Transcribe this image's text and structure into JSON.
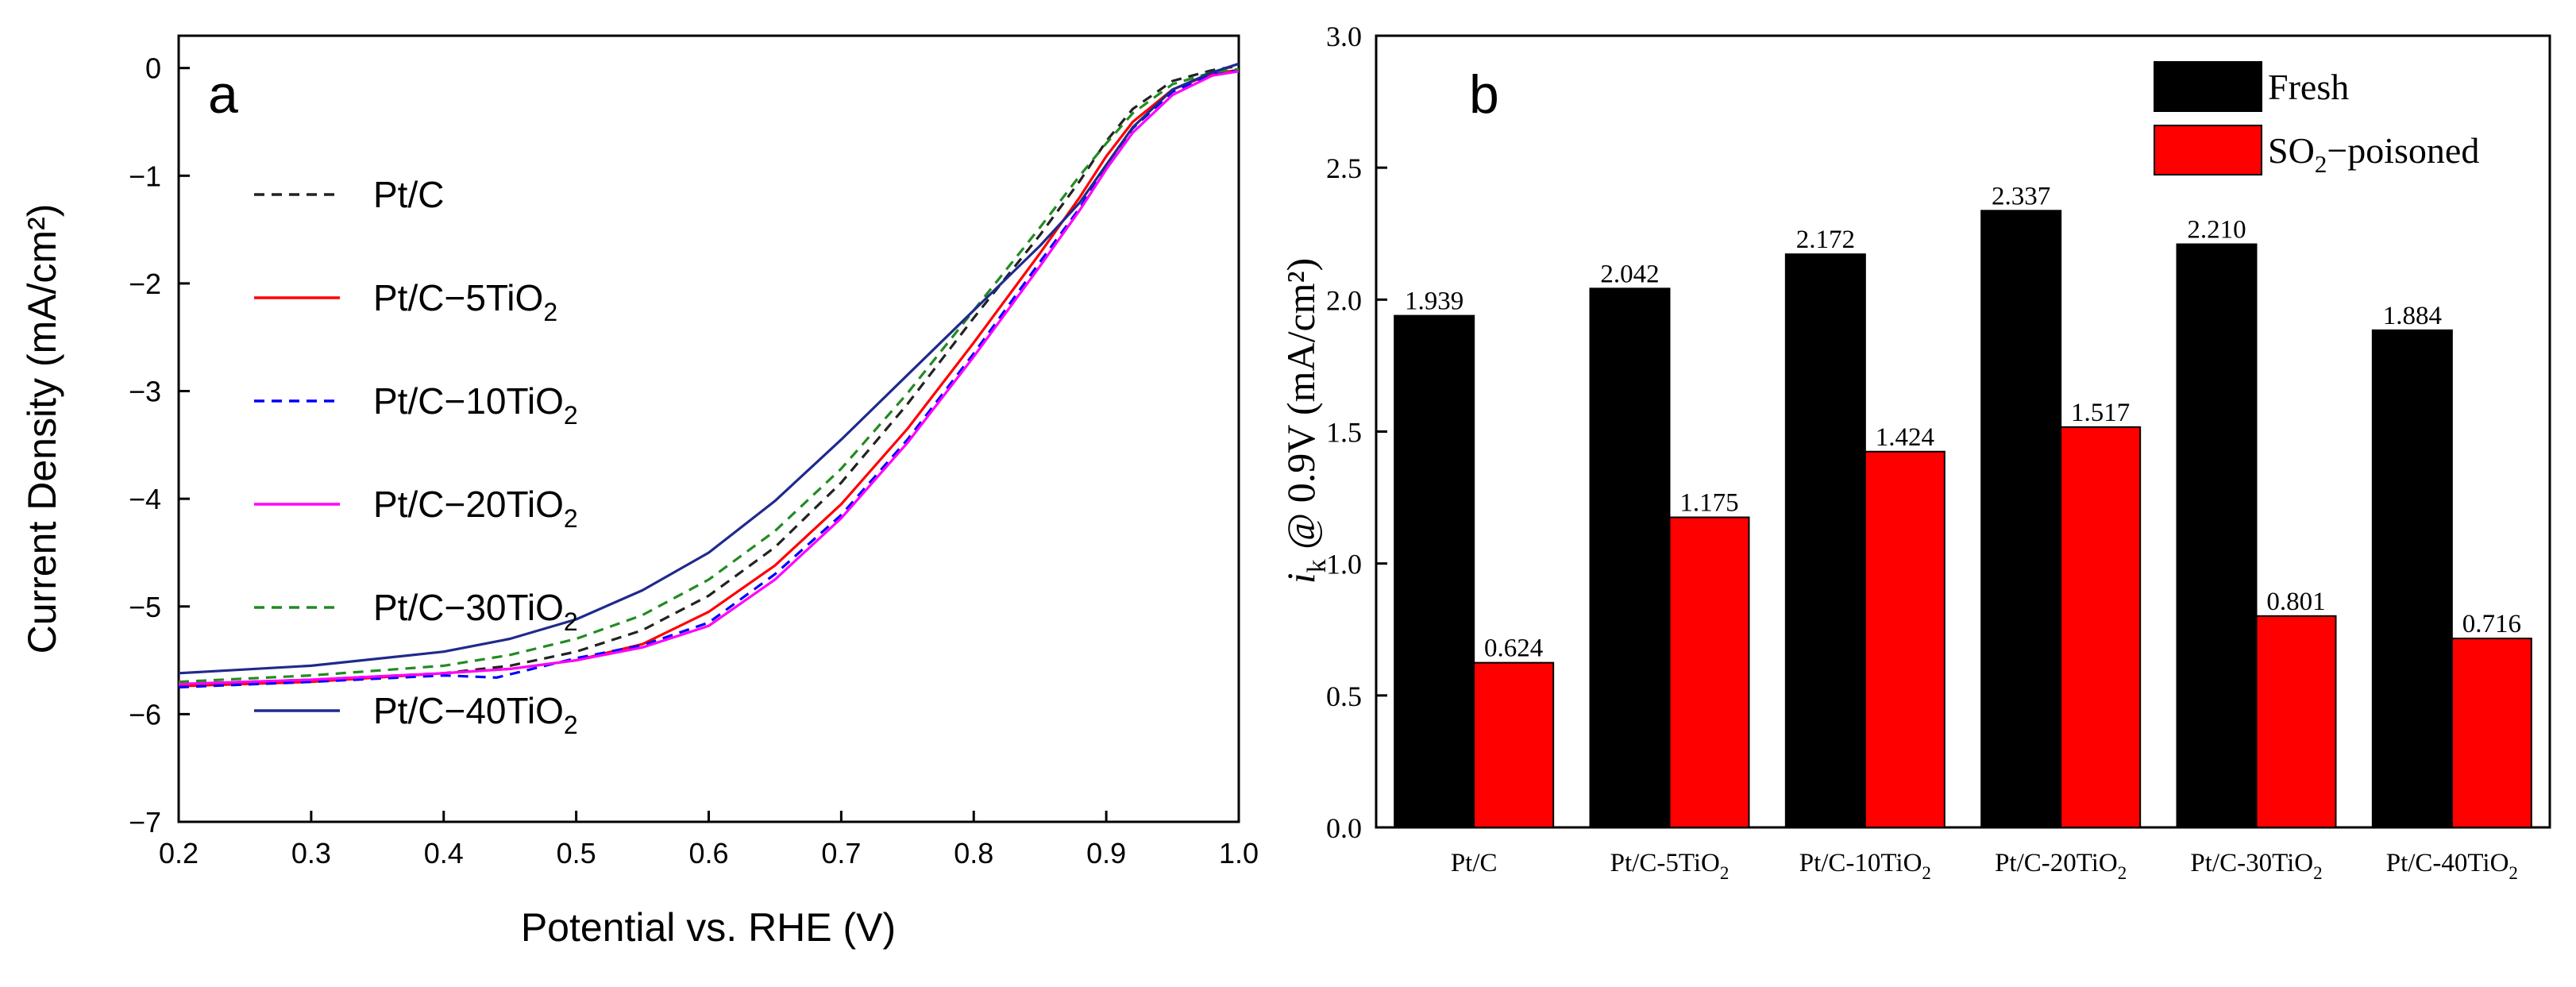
{
  "colors": {
    "black": "#000000",
    "red": "#ff0000",
    "blue": "#0000ff",
    "magenta": "#ff00ff",
    "green": "#228b22",
    "navy": "#1f2a8c",
    "dark": "#222222"
  },
  "chart_data": [
    {
      "type": "line",
      "panel_label": "a",
      "xlabel": "Potential vs. RHE (V)",
      "ylabel": "Current Density (mA/cm²)",
      "xlim": [
        0.2,
        1.0
      ],
      "ylim": [
        -7,
        0.3
      ],
      "xticks": [
        "0.2",
        "0.3",
        "0.4",
        "0.5",
        "0.6",
        "0.7",
        "0.8",
        "0.9",
        "1.0"
      ],
      "yticks": [
        "0",
        "−1",
        "−2",
        "−3",
        "−4",
        "−5",
        "−6",
        "−7"
      ],
      "legend_position": "upper-left",
      "series": [
        {
          "name": "Pt/C",
          "label_base": "Pt/C",
          "label_sub": "",
          "color_key": "dark",
          "dashed": true,
          "x": [
            0.2,
            0.3,
            0.4,
            0.45,
            0.5,
            0.55,
            0.6,
            0.65,
            0.7,
            0.75,
            0.8,
            0.85,
            0.88,
            0.9,
            0.92,
            0.95,
            0.98,
            1.0
          ],
          "y": [
            -5.72,
            -5.68,
            -5.62,
            -5.55,
            -5.42,
            -5.22,
            -4.9,
            -4.45,
            -3.85,
            -3.12,
            -2.32,
            -1.55,
            -1.05,
            -0.68,
            -0.38,
            -0.12,
            -0.02,
            0.02
          ]
        },
        {
          "name": "Pt/C−5TiO2",
          "label_base": "Pt/C−5TiO",
          "label_sub": "2",
          "color_key": "red",
          "dashed": false,
          "x": [
            0.2,
            0.3,
            0.4,
            0.45,
            0.5,
            0.55,
            0.6,
            0.65,
            0.7,
            0.75,
            0.8,
            0.85,
            0.88,
            0.9,
            0.92,
            0.95,
            0.98,
            1.0
          ],
          "y": [
            -5.74,
            -5.7,
            -5.62,
            -5.58,
            -5.5,
            -5.35,
            -5.05,
            -4.62,
            -4.05,
            -3.35,
            -2.55,
            -1.72,
            -1.2,
            -0.82,
            -0.5,
            -0.2,
            -0.05,
            -0.02
          ]
        },
        {
          "name": "Pt/C−10TiO2",
          "label_base": "Pt/C−10TiO",
          "label_sub": "2",
          "color_key": "blue",
          "dashed": true,
          "x": [
            0.2,
            0.3,
            0.4,
            0.44,
            0.5,
            0.55,
            0.6,
            0.65,
            0.7,
            0.75,
            0.8,
            0.85,
            0.88,
            0.9,
            0.92,
            0.95,
            0.98,
            1.0
          ],
          "y": [
            -5.75,
            -5.7,
            -5.64,
            -5.66,
            -5.48,
            -5.36,
            -5.15,
            -4.7,
            -4.15,
            -3.45,
            -2.65,
            -1.8,
            -1.3,
            -0.9,
            -0.56,
            -0.22,
            -0.06,
            -0.02
          ]
        },
        {
          "name": "Pt/C−20TiO2",
          "label_base": "Pt/C−20TiO",
          "label_sub": "2",
          "color_key": "magenta",
          "dashed": false,
          "x": [
            0.2,
            0.3,
            0.4,
            0.45,
            0.5,
            0.55,
            0.6,
            0.65,
            0.7,
            0.75,
            0.8,
            0.85,
            0.88,
            0.9,
            0.92,
            0.95,
            0.98,
            1.0
          ],
          "y": [
            -5.72,
            -5.68,
            -5.62,
            -5.58,
            -5.5,
            -5.38,
            -5.18,
            -4.75,
            -4.18,
            -3.48,
            -2.68,
            -1.84,
            -1.32,
            -0.94,
            -0.6,
            -0.25,
            -0.07,
            -0.03
          ]
        },
        {
          "name": "Pt/C−30TiO2",
          "label_base": "Pt/C−30TiO",
          "label_sub": "2",
          "color_key": "green",
          "dashed": true,
          "x": [
            0.2,
            0.3,
            0.4,
            0.45,
            0.5,
            0.55,
            0.6,
            0.65,
            0.7,
            0.75,
            0.8,
            0.85,
            0.88,
            0.9,
            0.92,
            0.95,
            0.98,
            1.0
          ],
          "y": [
            -5.7,
            -5.64,
            -5.55,
            -5.45,
            -5.3,
            -5.08,
            -4.75,
            -4.3,
            -3.72,
            -3.02,
            -2.25,
            -1.48,
            -1.0,
            -0.7,
            -0.42,
            -0.15,
            -0.04,
            -0.01
          ]
        },
        {
          "name": "Pt/C−40TiO2",
          "label_base": "Pt/C−40TiO",
          "label_sub": "2",
          "color_key": "navy",
          "dashed": false,
          "x": [
            0.2,
            0.3,
            0.4,
            0.45,
            0.5,
            0.55,
            0.6,
            0.65,
            0.7,
            0.75,
            0.8,
            0.85,
            0.88,
            0.9,
            0.92,
            0.95,
            0.98,
            1.0
          ],
          "y": [
            -5.62,
            -5.55,
            -5.42,
            -5.3,
            -5.12,
            -4.85,
            -4.5,
            -4.02,
            -3.45,
            -2.85,
            -2.25,
            -1.65,
            -1.25,
            -0.9,
            -0.55,
            -0.2,
            -0.04,
            0.04
          ]
        }
      ]
    },
    {
      "type": "bar",
      "panel_label": "b",
      "ylabel_italic": "i",
      "ylabel_sub": "k",
      "ylabel_rest": " @ 0.9V (mA/cm²)",
      "ylim": [
        0.0,
        3.0
      ],
      "yticks": [
        "0.0",
        "0.5",
        "1.0",
        "1.5",
        "2.0",
        "2.5",
        "3.0"
      ],
      "legend_position": "top-right",
      "categories": [
        {
          "base": "Pt/C",
          "sub": ""
        },
        {
          "base": "Pt/C-5TiO",
          "sub": "2"
        },
        {
          "base": "Pt/C-10TiO",
          "sub": "2"
        },
        {
          "base": "Pt/C-20TiO",
          "sub": "2"
        },
        {
          "base": "Pt/C-30TiO",
          "sub": "2"
        },
        {
          "base": "Pt/C-40TiO",
          "sub": "2"
        }
      ],
      "series": [
        {
          "name": "Fresh",
          "legend_base": "Fresh",
          "legend_sub": "",
          "legend_rest": "",
          "color_key": "black",
          "values": [
            1.939,
            2.042,
            2.172,
            2.337,
            2.21,
            1.884
          ],
          "labels": [
            "1.939",
            "2.042",
            "2.172",
            "2.337",
            "2.210",
            "1.884"
          ]
        },
        {
          "name": "SO2−poisoned",
          "legend_base": "SO",
          "legend_sub": "2",
          "legend_rest": "−poisoned",
          "color_key": "red",
          "values": [
            0.624,
            1.175,
            1.424,
            1.517,
            0.801,
            0.716
          ],
          "labels": [
            "0.624",
            "1.175",
            "1.424",
            "1.517",
            "0.801",
            "0.716"
          ]
        }
      ]
    }
  ]
}
